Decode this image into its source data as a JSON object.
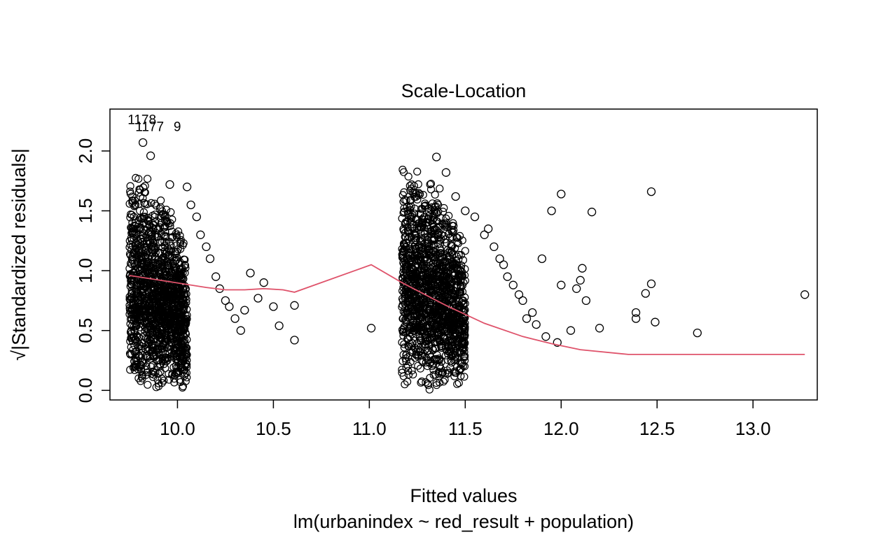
{
  "chart_data": {
    "type": "scatter",
    "title": "Scale-Location",
    "xlabel": "Fitted values",
    "ylabel": "√|Standardized residuals|",
    "caption": "lm(urbanindex ~ red_result + population)",
    "xlim": [
      9.7,
      13.3
    ],
    "ylim": [
      0.0,
      2.3
    ],
    "x_ticks": [
      10.0,
      10.5,
      11.0,
      11.5,
      12.0,
      12.5,
      13.0
    ],
    "x_tick_labels": [
      "10.0",
      "10.5",
      "11.0",
      "11.5",
      "12.0",
      "12.5",
      "13.0"
    ],
    "y_ticks": [
      0.0,
      0.5,
      1.0,
      1.5,
      2.0
    ],
    "y_tick_labels": [
      "0.0",
      "0.5",
      "1.0",
      "1.5",
      "2.0"
    ],
    "grid": false,
    "legend": "none",
    "point_style": "open circle",
    "point_color": "#000000",
    "smoother_color": "#DF536B",
    "clusters": [
      {
        "x_range": [
          9.75,
          10.05
        ],
        "y_range": [
          0.0,
          1.85
        ]
      },
      {
        "x_range": [
          11.17,
          11.5
        ],
        "y_range": [
          0.0,
          1.95
        ]
      }
    ],
    "series": [
      {
        "type": "points",
        "x": [
          9.82,
          9.86,
          9.96,
          10.05,
          10.07,
          10.1,
          10.12,
          10.15,
          10.17,
          10.2,
          10.22,
          10.25,
          10.27,
          10.3,
          10.33,
          10.35,
          10.38,
          10.42,
          10.45,
          10.5,
          10.53,
          10.61,
          10.61,
          11.01,
          11.35,
          11.4,
          11.45,
          11.5,
          11.55,
          11.6,
          11.62,
          11.65,
          11.68,
          11.7,
          11.72,
          11.75,
          11.78,
          11.8,
          11.82,
          11.85,
          11.87,
          11.9,
          11.92,
          11.95,
          11.98,
          12.0,
          12.0,
          12.05,
          12.08,
          12.1,
          12.11,
          12.13,
          12.16,
          12.2,
          12.39,
          12.39,
          12.44,
          12.47,
          12.47,
          12.49,
          12.71,
          13.27
        ],
        "y": [
          2.07,
          1.96,
          1.72,
          1.7,
          1.55,
          1.45,
          1.3,
          1.2,
          1.1,
          0.95,
          0.85,
          0.75,
          0.7,
          0.6,
          0.5,
          0.67,
          0.98,
          0.77,
          0.9,
          0.7,
          0.54,
          0.42,
          0.71,
          0.52,
          1.95,
          1.82,
          1.62,
          1.5,
          1.45,
          1.3,
          1.35,
          1.2,
          1.1,
          1.05,
          0.95,
          0.88,
          0.8,
          0.75,
          0.6,
          0.65,
          0.55,
          1.1,
          0.45,
          1.5,
          0.4,
          0.88,
          1.64,
          0.5,
          0.85,
          0.92,
          1.02,
          0.75,
          1.49,
          0.52,
          0.65,
          0.6,
          0.81,
          1.66,
          0.89,
          0.57,
          0.48,
          0.8
        ]
      },
      {
        "type": "line",
        "name": "",
        "x": [
          9.75,
          9.95,
          10.15,
          10.25,
          10.35,
          10.45,
          10.55,
          10.61,
          11.01,
          11.17,
          11.4,
          11.6,
          11.8,
          11.95,
          12.1,
          12.35,
          12.7,
          13.27
        ],
        "y": [
          0.96,
          0.91,
          0.86,
          0.84,
          0.84,
          0.85,
          0.84,
          0.82,
          1.05,
          0.9,
          0.71,
          0.56,
          0.45,
          0.39,
          0.34,
          0.3,
          0.3,
          0.3
        ]
      }
    ],
    "annotations": [
      {
        "text": "1178",
        "x": 9.74,
        "y": 2.26
      },
      {
        "text": "1177",
        "x": 9.78,
        "y": 2.2
      },
      {
        "text": "9",
        "x": 9.98,
        "y": 2.2
      }
    ]
  }
}
